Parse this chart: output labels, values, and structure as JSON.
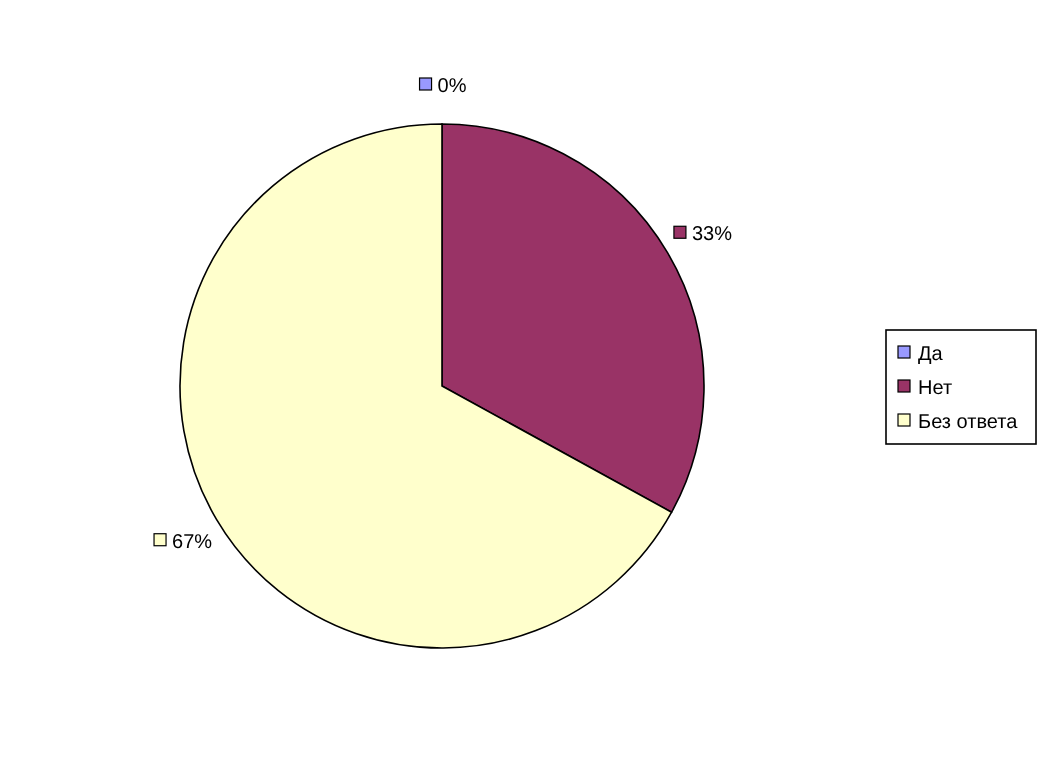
{
  "chart_data": {
    "type": "pie",
    "categories": [
      "Да",
      "Нет",
      "Без ответа"
    ],
    "values": [
      0,
      33,
      67
    ],
    "colors": [
      "#9999ff",
      "#993366",
      "#ffffcc"
    ],
    "value_labels": [
      "0%",
      "33%",
      "67%"
    ],
    "legend": "right"
  }
}
